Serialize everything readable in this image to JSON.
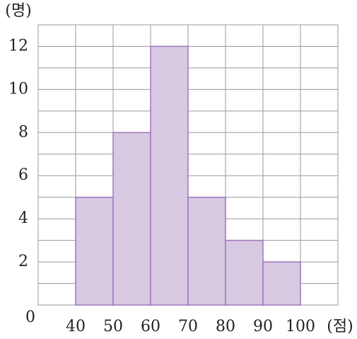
{
  "chart_data": {
    "type": "histogram",
    "y_label": "(명)",
    "x_label": "(점)",
    "bins": [
      40,
      50,
      60,
      70,
      80,
      90,
      100
    ],
    "values": [
      5,
      8,
      12,
      5,
      3,
      2
    ],
    "color": "#d8c9e3",
    "edge_color": "#9f74bd",
    "xlim": [
      30,
      110
    ],
    "xticks": [
      40,
      50,
      60,
      70,
      80,
      90,
      100
    ],
    "ylim": [
      0,
      13
    ],
    "yticks": [
      0,
      2,
      4,
      6,
      8,
      10,
      12
    ],
    "minor_yticks": [
      1,
      3,
      5,
      7,
      9,
      11,
      13
    ],
    "grid": true
  }
}
